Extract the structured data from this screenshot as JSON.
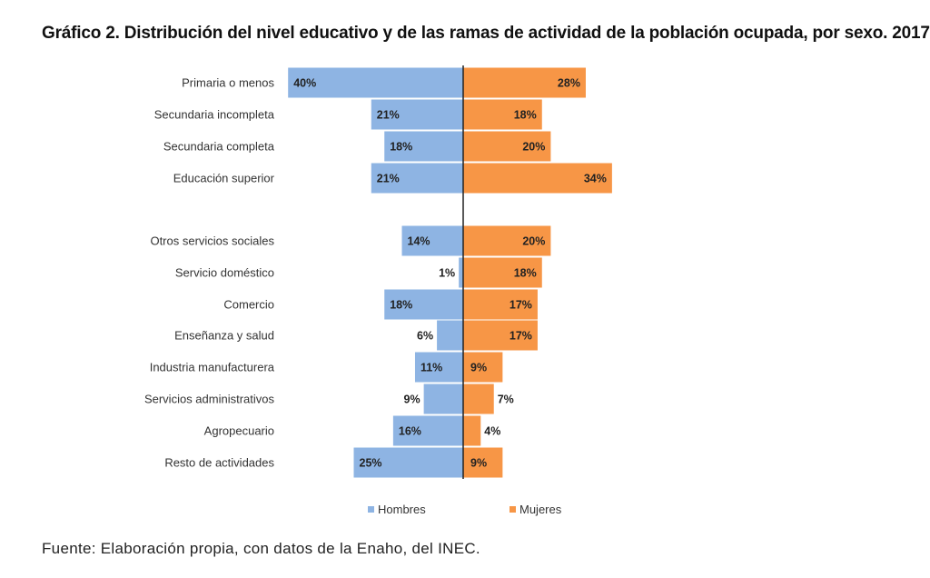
{
  "title": "Gráfico 2. Distribución del nivel educativo y de las ramas de actividad de la población ocupada, por sexo. 2017",
  "source": "Fuente: Elaboración propia, con datos de la Enaho, del INEC.",
  "chart_data": {
    "type": "bar",
    "orientation": "horizontal-diverging",
    "categories": [
      "Primaria o menos",
      "Secundaria incompleta",
      "Secundaria completa",
      "Educación superior",
      "Otros servicios sociales",
      "Servicio doméstico",
      "Comercio",
      "Enseñanza y salud",
      "Industria manufacturera",
      "Servicios administrativos",
      "Agropecuario",
      "Resto de actividades"
    ],
    "series": [
      {
        "name": "Hombres",
        "color": "#8eb4e3",
        "values": [
          40,
          21,
          18,
          21,
          14,
          1,
          18,
          6,
          11,
          9,
          16,
          25
        ],
        "labels": [
          "40%",
          "21%",
          "18%",
          "21%",
          "14%",
          "1%",
          "18%",
          "6%",
          "11%",
          "9%",
          "16%",
          "25%"
        ]
      },
      {
        "name": "Mujeres",
        "color": "#f79646",
        "values": [
          28,
          18,
          20,
          34,
          20,
          18,
          17,
          17,
          9,
          7,
          4,
          9
        ],
        "labels": [
          "28%",
          "18%",
          "20%",
          "34%",
          "20%",
          "18%",
          "17%",
          "17%",
          "9%",
          "7%",
          "4%",
          "9%"
        ]
      }
    ],
    "groups": [
      {
        "categories": [
          "Primaria o menos",
          "Secundaria incompleta",
          "Secundaria completa",
          "Educación superior"
        ]
      },
      {
        "categories": [
          "Otros servicios sociales",
          "Servicio doméstico",
          "Comercio",
          "Enseñanza y salud",
          "Industria manufacturera",
          "Servicios administrativos",
          "Agropecuario",
          "Resto de actividades"
        ]
      }
    ],
    "legend_position": "bottom",
    "grid": false
  }
}
